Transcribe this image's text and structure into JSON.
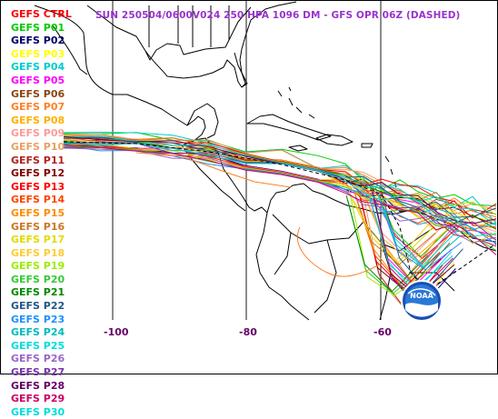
{
  "title": "SUN 250504/0600V024  250 HPA 1096 DM - GFS OPR 06Z (DASHED)",
  "title_color": "#9933cc",
  "legend": [
    {
      "label": "GEFS CTRL",
      "color": "#ff0000"
    },
    {
      "label": "GEFS P01",
      "color": "#00cc00"
    },
    {
      "label": "GEFS P02",
      "color": "#000066"
    },
    {
      "label": "GEFS P03",
      "color": "#ffff00"
    },
    {
      "label": "GEFS P04",
      "color": "#00cccc"
    },
    {
      "label": "GEFS P05",
      "color": "#ff00ff"
    },
    {
      "label": "GEFS P06",
      "color": "#8b4513"
    },
    {
      "label": "GEFS P07",
      "color": "#ff7f27"
    },
    {
      "label": "GEFS P08",
      "color": "#ffb000"
    },
    {
      "label": "GEFS P09",
      "color": "#ff9999"
    },
    {
      "label": "GEFS P10",
      "color": "#e8a060"
    },
    {
      "label": "GEFS P11",
      "color": "#b22222"
    },
    {
      "label": "GEFS P12",
      "color": "#800000"
    },
    {
      "label": "GEFS P13",
      "color": "#ff0000"
    },
    {
      "label": "GEFS P14",
      "color": "#ff4500"
    },
    {
      "label": "GEFS P15",
      "color": "#ff8c00"
    },
    {
      "label": "GEFS P16",
      "color": "#cc7722"
    },
    {
      "label": "GEFS P17",
      "color": "#dddd00"
    },
    {
      "label": "GEFS P18",
      "color": "#ffcc33"
    },
    {
      "label": "GEFS P19",
      "color": "#99ee00"
    },
    {
      "label": "GEFS P20",
      "color": "#33cc33"
    },
    {
      "label": "GEFS P21",
      "color": "#008800"
    },
    {
      "label": "GEFS P22",
      "color": "#225588"
    },
    {
      "label": "GEFS P23",
      "color": "#1e90ff"
    },
    {
      "label": "GEFS P24",
      "color": "#00bbbb"
    },
    {
      "label": "GEFS P25",
      "color": "#00dddd"
    },
    {
      "label": "GEFS P26",
      "color": "#9966cc"
    },
    {
      "label": "GEFS P27",
      "color": "#7733aa"
    },
    {
      "label": "GEFS P28",
      "color": "#660066"
    },
    {
      "label": "GEFS P29",
      "color": "#cc0066"
    },
    {
      "label": "GEFS P30",
      "color": "#00dddd"
    }
  ],
  "longitude_labels": [
    "-100",
    "-80",
    "-60"
  ],
  "longitude_label_color": "#660066",
  "logo_text": "NOAA",
  "logo_color": "#0a3a9a"
}
